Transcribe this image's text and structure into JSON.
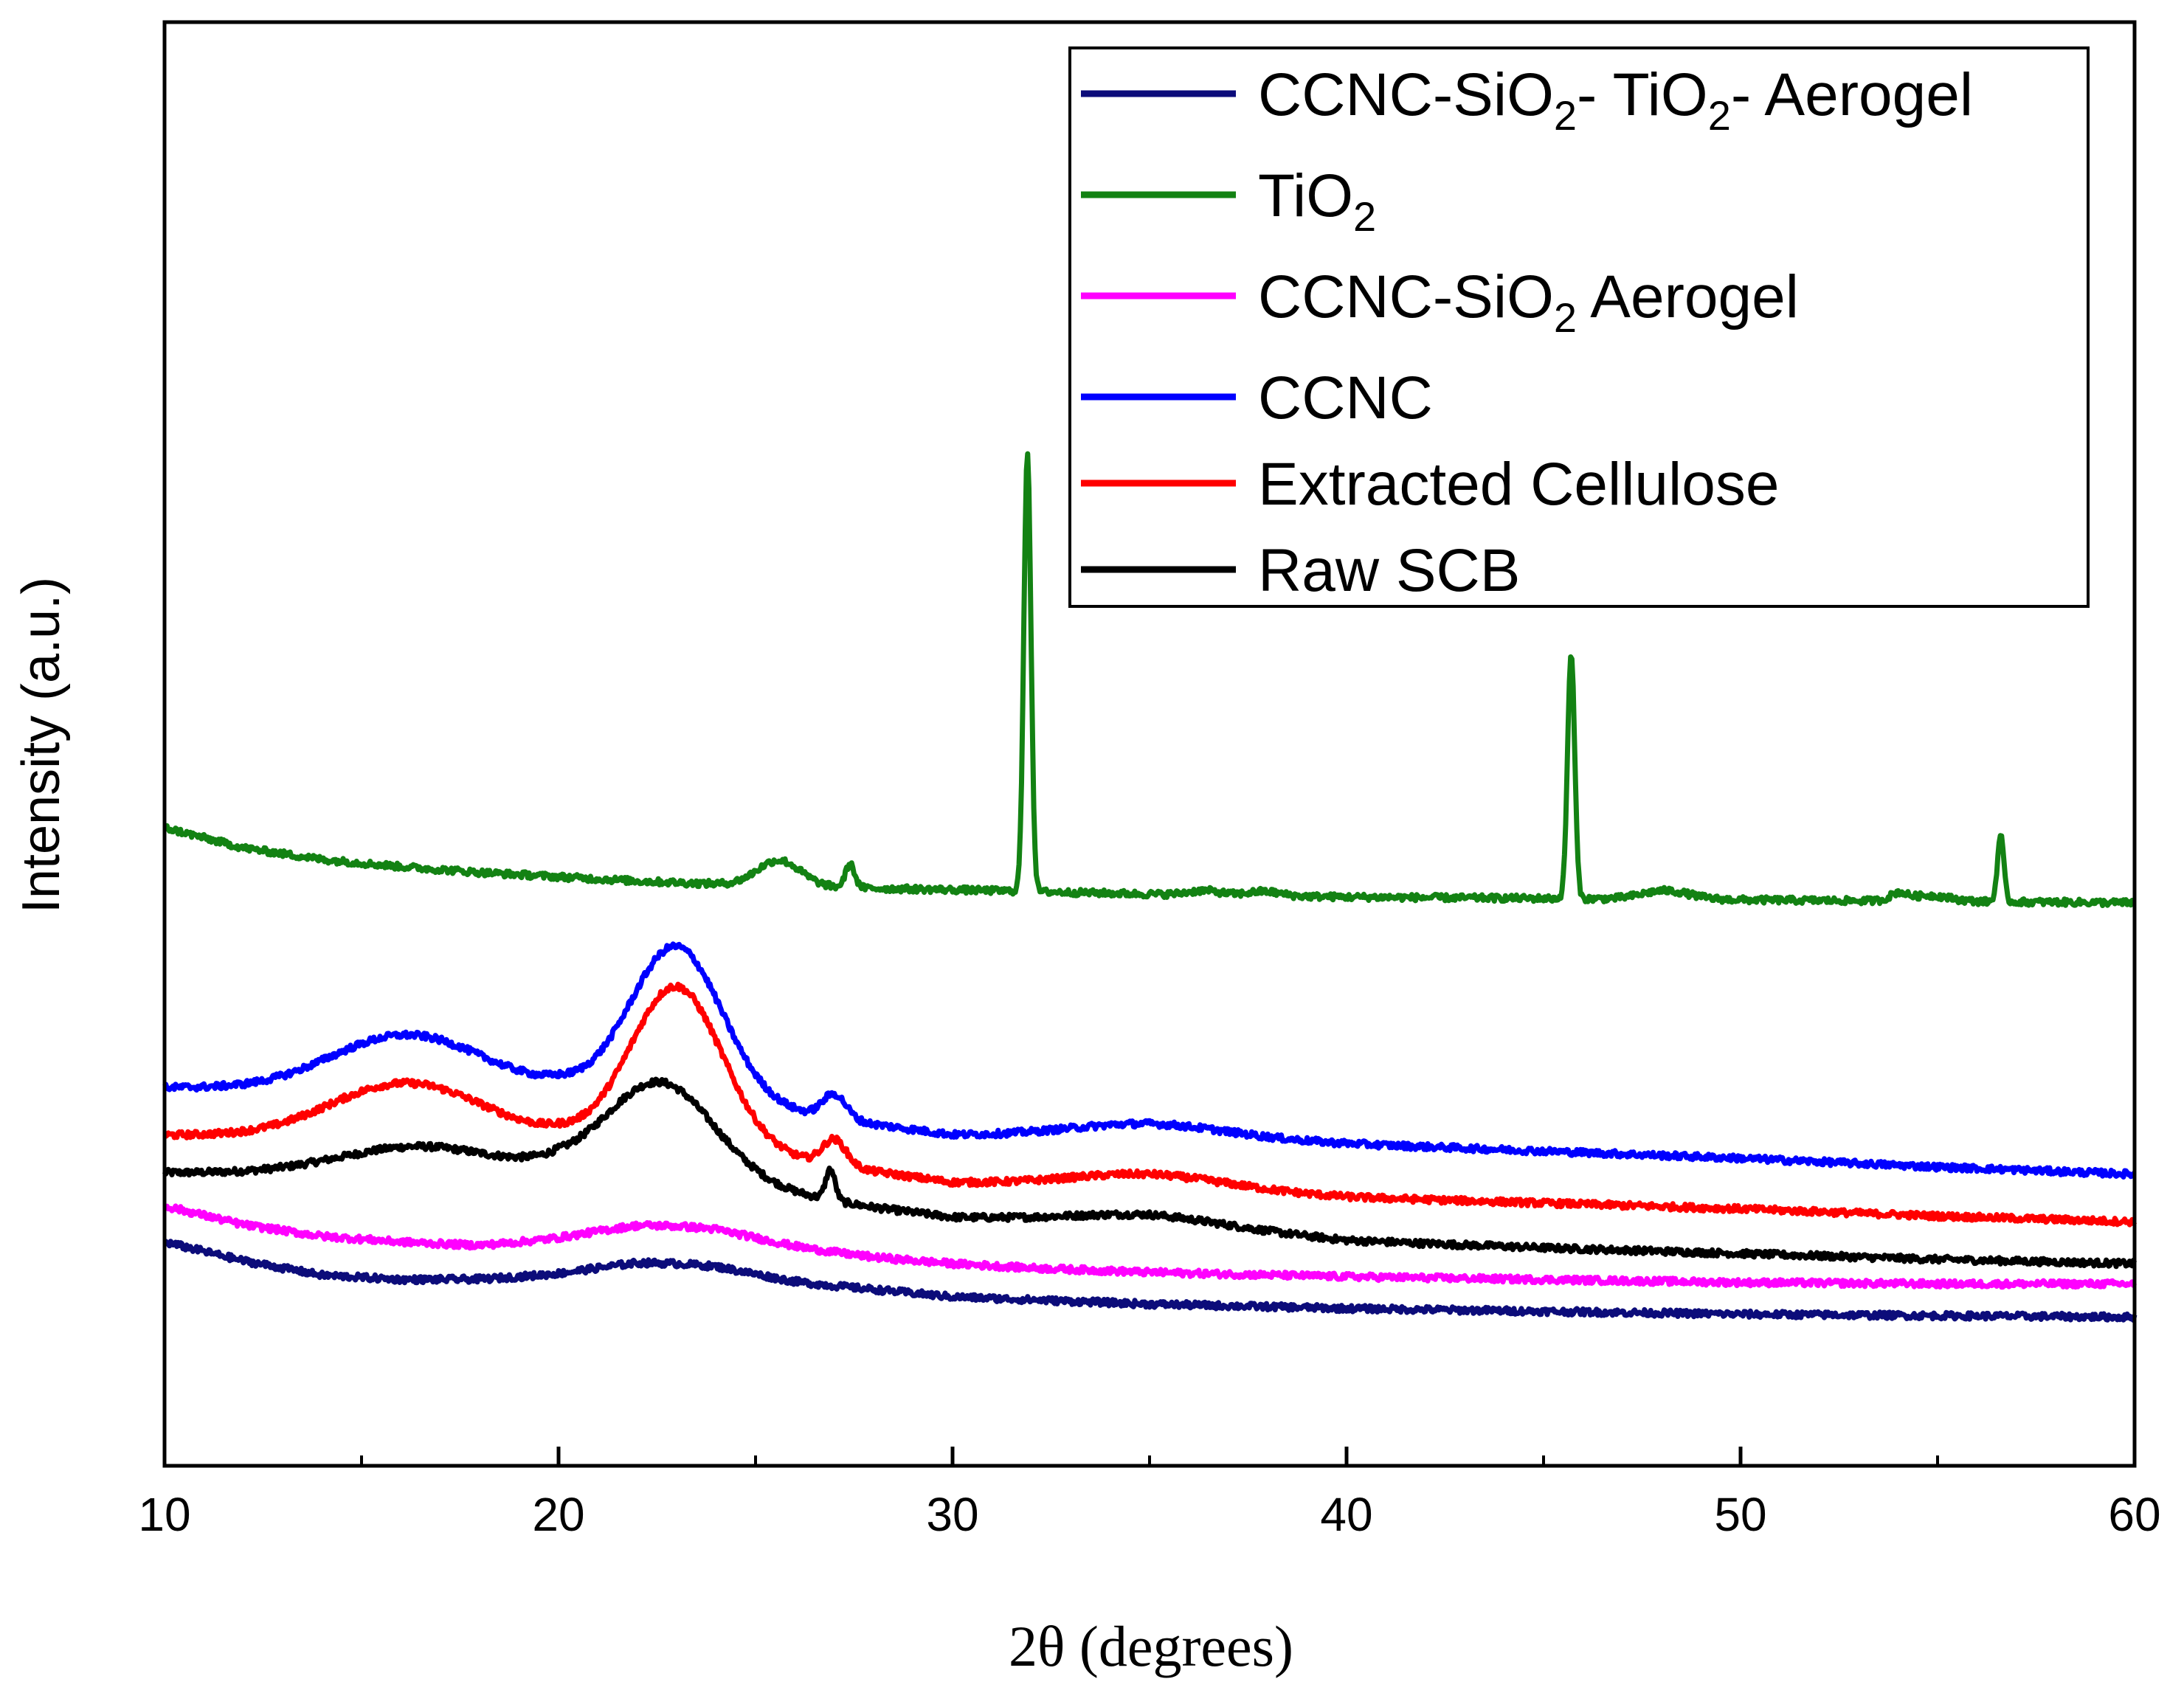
{
  "chart_data": {
    "type": "line",
    "title": "",
    "xlabel_symbol": "2θ",
    "xlabel_unit": "(degrees)",
    "ylabel": "Intensity (a.u.)",
    "xlim": [
      10,
      60
    ],
    "ylim": [
      0,
      100
    ],
    "x_ticks": [
      10,
      20,
      30,
      40,
      50,
      60
    ],
    "x_minor_ticks": [
      15,
      25,
      35,
      45,
      55
    ],
    "y_ticks": [],
    "grid": false,
    "legend_position": "top-right",
    "series": [
      {
        "name": "CCNC-SiO2- TiO2- Aerogel",
        "legend_parts": [
          {
            "t": "CCNC-SiO",
            "sub": false
          },
          {
            "t": "2",
            "sub": true
          },
          {
            "t": "- TiO",
            "sub": false
          },
          {
            "t": "2",
            "sub": true
          },
          {
            "t": "- Aerogel",
            "sub": false
          }
        ],
        "color": "#0c0c7a",
        "baseline": [
          [
            10,
            15.5
          ],
          [
            12,
            14.2
          ],
          [
            14,
            13.2
          ],
          [
            16,
            12.9
          ],
          [
            18,
            12.9
          ],
          [
            20,
            13.1
          ],
          [
            22,
            13.5
          ],
          [
            24,
            13.3
          ],
          [
            26,
            12.6
          ],
          [
            28,
            12.2
          ],
          [
            30,
            11.7
          ],
          [
            32,
            11.5
          ],
          [
            35,
            11.2
          ],
          [
            40,
            10.9
          ],
          [
            45,
            10.7
          ],
          [
            50,
            10.5
          ],
          [
            55,
            10.4
          ],
          [
            60,
            10.3
          ]
        ],
        "peaks": [
          [
            22.8,
            0.6,
            2.0
          ]
        ]
      },
      {
        "name": "TiO2",
        "legend_parts": [
          {
            "t": "TiO",
            "sub": false
          },
          {
            "t": "2",
            "sub": true
          }
        ],
        "color": "#138213",
        "baseline": [
          [
            10,
            44.2
          ],
          [
            12,
            42.8
          ],
          [
            14,
            42.0
          ],
          [
            16,
            41.5
          ],
          [
            18,
            41.1
          ],
          [
            20,
            40.8
          ],
          [
            22,
            40.5
          ],
          [
            24,
            40.3
          ],
          [
            26,
            40.1
          ],
          [
            28,
            40.0
          ],
          [
            30,
            39.9
          ],
          [
            35,
            39.6
          ],
          [
            40,
            39.4
          ],
          [
            45,
            39.3
          ],
          [
            50,
            39.2
          ],
          [
            55,
            39.1
          ],
          [
            60,
            39.0
          ]
        ],
        "peaks": [
          [
            25.6,
            1.8,
            0.55
          ],
          [
            27.4,
            1.6,
            0.12
          ],
          [
            31.9,
            30.5,
            0.09
          ],
          [
            36.4,
            0.3,
            0.4
          ],
          [
            37.9,
            0.3,
            0.4
          ],
          [
            45.7,
            17.0,
            0.09
          ],
          [
            48.1,
            0.6,
            0.6
          ],
          [
            54.0,
            0.5,
            0.2
          ],
          [
            54.8,
            0.4,
            0.5
          ],
          [
            56.6,
            4.6,
            0.08
          ]
        ]
      },
      {
        "name": "CCNC-SiO2 Aerogel",
        "legend_parts": [
          {
            "t": "CCNC-SiO",
            "sub": false
          },
          {
            "t": "2",
            "sub": true
          },
          {
            "t": " Aerogel",
            "sub": false
          }
        ],
        "color": "#ff00ff",
        "baseline": [
          [
            10,
            18.0
          ],
          [
            12,
            16.7
          ],
          [
            14,
            15.9
          ],
          [
            16,
            15.5
          ],
          [
            18,
            15.2
          ],
          [
            20,
            15.4
          ],
          [
            22,
            15.8
          ],
          [
            24,
            15.6
          ],
          [
            26,
            14.9
          ],
          [
            28,
            14.4
          ],
          [
            30,
            14.0
          ],
          [
            32,
            13.7
          ],
          [
            35,
            13.4
          ],
          [
            40,
            13.1
          ],
          [
            45,
            12.9
          ],
          [
            50,
            12.7
          ],
          [
            55,
            12.6
          ],
          [
            60,
            12.6
          ]
        ],
        "peaks": [
          [
            22.8,
            0.9,
            2.2
          ]
        ]
      },
      {
        "name": "CCNC",
        "legend_parts": [
          {
            "t": "CCNC",
            "sub": false
          }
        ],
        "color": "#0000ff",
        "baseline": [
          [
            10,
            26.2
          ],
          [
            15,
            26.2
          ],
          [
            20,
            26.5
          ],
          [
            25,
            24.8
          ],
          [
            30,
            22.9
          ],
          [
            35,
            22.8
          ],
          [
            40,
            22.3
          ],
          [
            45,
            21.8
          ],
          [
            50,
            21.3
          ],
          [
            55,
            20.7
          ],
          [
            60,
            20.2
          ]
        ],
        "peaks": [
          [
            15.5,
            2.8,
            1.6
          ],
          [
            17.3,
            1.4,
            1.4
          ],
          [
            23.0,
            10.5,
            1.15
          ],
          [
            27.0,
            1.7,
            0.3
          ],
          [
            35.0,
            0.9,
            2.0
          ]
        ]
      },
      {
        "name": "Extracted Cellulose",
        "legend_parts": [
          {
            "t": "Extracted Cellulose",
            "sub": false
          }
        ],
        "color": "#ff0000",
        "baseline": [
          [
            10,
            22.9
          ],
          [
            15,
            23.0
          ],
          [
            20,
            23.1
          ],
          [
            25,
            21.6
          ],
          [
            30,
            19.6
          ],
          [
            35,
            19.3
          ],
          [
            40,
            18.6
          ],
          [
            45,
            18.2
          ],
          [
            50,
            17.8
          ],
          [
            55,
            17.3
          ],
          [
            60,
            16.9
          ]
        ],
        "peaks": [
          [
            15.5,
            2.7,
            1.6
          ],
          [
            17.3,
            1.4,
            1.4
          ],
          [
            23.0,
            11.0,
            1.15
          ],
          [
            27.0,
            1.8,
            0.3
          ],
          [
            35.0,
            0.9,
            2.0
          ]
        ]
      },
      {
        "name": "Raw SCB",
        "legend_parts": [
          {
            "t": "Raw SCB",
            "sub": false
          }
        ],
        "color": "#000000",
        "baseline": [
          [
            10,
            20.3
          ],
          [
            15,
            20.3
          ],
          [
            20,
            20.8
          ],
          [
            25,
            19.2
          ],
          [
            28,
            17.9
          ],
          [
            30,
            17.2
          ],
          [
            35,
            16.8
          ],
          [
            40,
            15.6
          ],
          [
            45,
            15.1
          ],
          [
            50,
            14.7
          ],
          [
            55,
            14.3
          ],
          [
            60,
            14.0
          ]
        ],
        "peaks": [
          [
            15.6,
            1.2,
            1.7
          ],
          [
            17.2,
            0.7,
            1.5
          ],
          [
            22.6,
            6.6,
            1.35
          ],
          [
            26.9,
            2.1,
            0.12
          ],
          [
            35.0,
            0.6,
            2.0
          ]
        ]
      }
    ]
  }
}
